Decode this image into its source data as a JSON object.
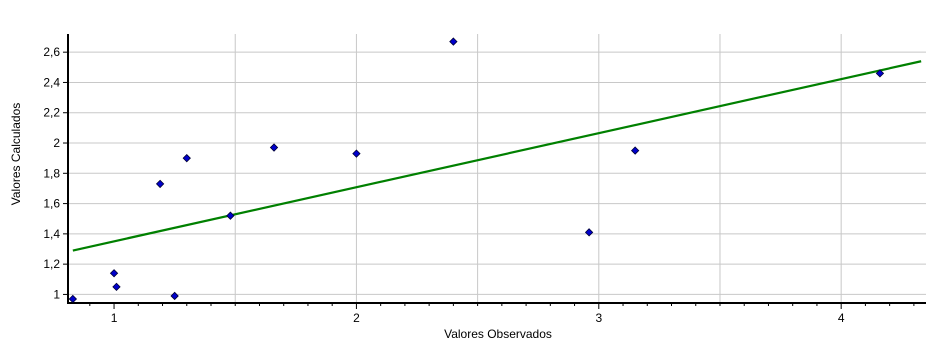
{
  "chart_data": {
    "type": "scatter",
    "xlabel": "Valores Observados",
    "ylabel": "Valores Calculados",
    "xlim": [
      0.81,
      4.35
    ],
    "ylim": [
      0.95,
      2.72
    ],
    "xticks": [
      1,
      2,
      3,
      4
    ],
    "xtick_labels": [
      "1",
      "2",
      "3",
      "4"
    ],
    "yticks": [
      1,
      1.2,
      1.4,
      1.6,
      1.8,
      2,
      2.2,
      2.4,
      2.6
    ],
    "ytick_labels": [
      "1",
      "1,2",
      "1,4",
      "1,6",
      "1,8",
      "2",
      "2,2",
      "2,4",
      "2,6"
    ],
    "x_gridlines": [
      1.5,
      2,
      2.5,
      3,
      3.5,
      4
    ],
    "grid": true,
    "series": [
      {
        "type": "scatter",
        "color": "#0000cc",
        "points": [
          [
            0.83,
            0.97
          ],
          [
            1.0,
            1.14
          ],
          [
            1.01,
            1.05
          ],
          [
            1.19,
            1.73
          ],
          [
            1.25,
            0.99
          ],
          [
            1.3,
            1.9
          ],
          [
            1.48,
            1.52
          ],
          [
            1.66,
            1.97
          ],
          [
            2.0,
            1.93
          ],
          [
            2.4,
            2.67
          ],
          [
            2.96,
            1.41
          ],
          [
            3.15,
            1.95
          ],
          [
            4.16,
            2.46
          ]
        ]
      },
      {
        "type": "line",
        "color": "#008000",
        "points": [
          [
            0.83,
            1.29
          ],
          [
            4.33,
            2.54
          ]
        ]
      }
    ]
  }
}
